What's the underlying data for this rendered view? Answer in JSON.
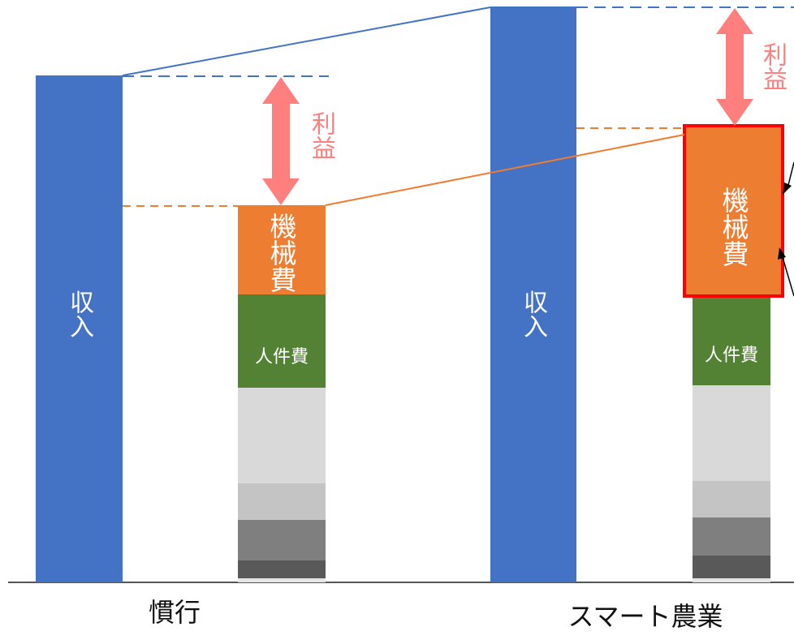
{
  "labels": {
    "income": "収入",
    "machinery_cost": "機械費",
    "labor_cost": "人件費",
    "profit": "利益"
  },
  "categories": [
    "慣行",
    "スマート農業"
  ],
  "colors": {
    "income": "#4472C4",
    "machinery": "#ED7D31",
    "labor": "#548235",
    "profit_arrow": "#FF7F7F",
    "highlight_border": "#FF0000",
    "other_costs": [
      "#D9D9D9",
      "#C4C4C4",
      "#7F7F7F",
      "#595959"
    ]
  }
}
